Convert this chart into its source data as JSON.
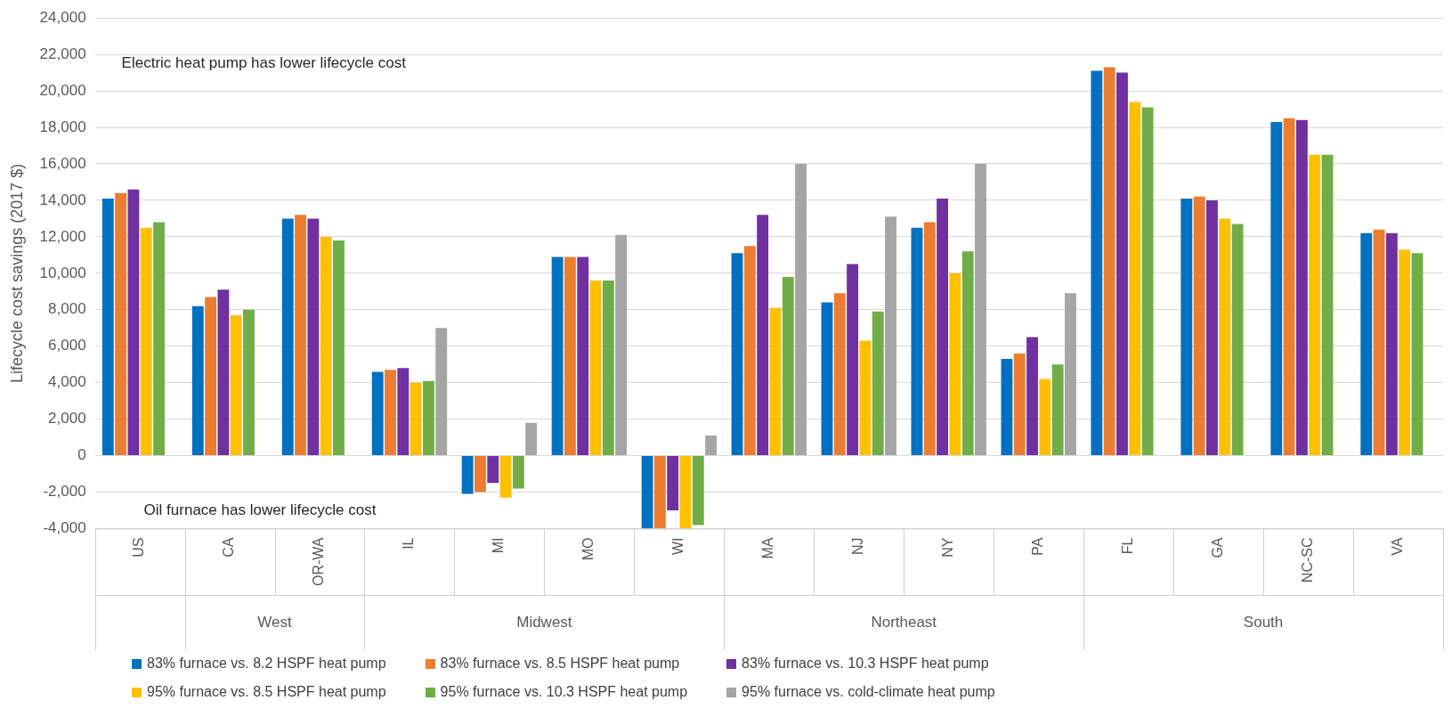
{
  "chart_data": {
    "type": "bar",
    "ylabel": "Lifecycle cost savings (2017 $)",
    "categories": [
      "US",
      "CA",
      "OR-WA",
      "IL",
      "MI",
      "MO",
      "WI",
      "MA",
      "NJ",
      "NY",
      "PA",
      "FL",
      "GA",
      "NC-SC",
      "VA"
    ],
    "series": [
      {
        "name": "83% furnace vs. 8.2 HSPF heat pump",
        "color": "#0070c0",
        "values": [
          14100,
          8200,
          13000,
          4600,
          -2100,
          10900,
          -4000,
          11100,
          8400,
          12500,
          5300,
          21100,
          14100,
          18300,
          12200
        ]
      },
      {
        "name": "83% furnace vs. 8.5 HSPF heat pump",
        "color": "#ed7d31",
        "values": [
          14400,
          8700,
          13200,
          4700,
          -2000,
          10900,
          -4000,
          11500,
          8900,
          12800,
          5600,
          21300,
          14200,
          18500,
          12400
        ]
      },
      {
        "name": "83% furnace vs. 10.3 HSPF heat pump",
        "color": "#7030a0",
        "values": [
          14600,
          9100,
          13000,
          4800,
          -1500,
          10900,
          -3000,
          13200,
          10500,
          14100,
          6500,
          21000,
          14000,
          18400,
          12200
        ]
      },
      {
        "name": "95% furnace vs. 8.5 HSPF heat pump",
        "color": "#ffc000",
        "values": [
          12500,
          7700,
          12000,
          4000,
          -2300,
          9600,
          -4000,
          8100,
          6300,
          10000,
          4200,
          19400,
          13000,
          16500,
          11300
        ]
      },
      {
        "name": "95% furnace vs. 10.3 HSPF heat pump",
        "color": "#70ad47",
        "values": [
          12800,
          8000,
          11800,
          4100,
          -1800,
          9600,
          -3800,
          9800,
          7900,
          11200,
          5000,
          19100,
          12700,
          16500,
          11100
        ]
      },
      {
        "name": "95% furnace vs. cold-climate heat pump",
        "color": "#a5a5a5",
        "values": [
          null,
          null,
          null,
          7000,
          1800,
          12100,
          1100,
          16000,
          13100,
          16000,
          8900,
          null,
          null,
          null,
          null
        ]
      }
    ],
    "ylim": [
      -4000,
      24000
    ],
    "yticks": [
      {
        "value": -4000,
        "label": "-4,000"
      },
      {
        "value": -2000,
        "label": "-2,000"
      },
      {
        "value": 0,
        "label": "0"
      },
      {
        "value": 2000,
        "label": "2,000"
      },
      {
        "value": 4000,
        "label": "4,000"
      },
      {
        "value": 6000,
        "label": "6,000"
      },
      {
        "value": 8000,
        "label": "8,000"
      },
      {
        "value": 10000,
        "label": "10,000"
      },
      {
        "value": 12000,
        "label": "12,000"
      },
      {
        "value": 14000,
        "label": "14,000"
      },
      {
        "value": 16000,
        "label": "16,000"
      },
      {
        "value": 18000,
        "label": "18,000"
      },
      {
        "value": 20000,
        "label": "20,000"
      },
      {
        "value": 22000,
        "label": "22,000"
      },
      {
        "value": 24000,
        "label": "24,000"
      }
    ],
    "grid": "y",
    "legend": "bottom",
    "annotations": [
      "Electric heat pump has lower lifecycle cost",
      "Oil furnace has lower lifecycle cost",
      "West",
      "Midwest",
      "Northeast",
      "South"
    ]
  }
}
